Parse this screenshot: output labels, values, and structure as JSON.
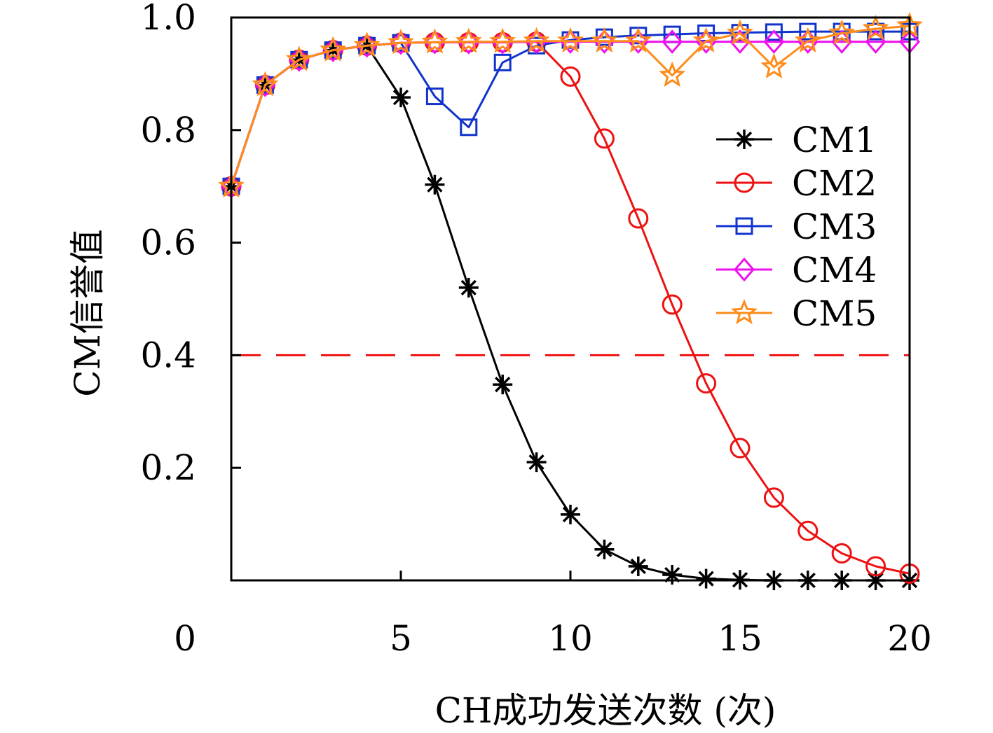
{
  "chart_data": {
    "type": "line",
    "title": "",
    "xlabel": "CH成功发送次数 (次)",
    "ylabel": "CM信誉值",
    "xlim": [
      0,
      20
    ],
    "ylim": [
      0,
      1.0
    ],
    "x_ticks": [
      0,
      5,
      10,
      15,
      20
    ],
    "x_tick_labels": [
      "0",
      "5",
      "10",
      "15",
      "20"
    ],
    "y_ticks": [
      0.2,
      0.4,
      0.6,
      0.8,
      1.0
    ],
    "y_tick_labels": [
      "0.2",
      "0.4",
      "0.6",
      "0.8",
      "1.0"
    ],
    "legend_position": "right",
    "x": [
      0,
      1,
      2,
      3,
      4,
      5,
      6,
      7,
      8,
      9,
      10,
      11,
      12,
      13,
      14,
      15,
      16,
      17,
      18,
      19,
      20
    ],
    "threshold": {
      "value": 0.4,
      "color": "#ee1111",
      "style": "dashed"
    },
    "series": [
      {
        "name": "CM1",
        "color": "#000000",
        "marker": "asterisk",
        "values": [
          0.7,
          0.88,
          0.925,
          0.942,
          0.95,
          0.858,
          0.703,
          0.52,
          0.348,
          0.21,
          0.117,
          0.055,
          0.025,
          0.01,
          0.003,
          0.001,
          0.0,
          0.0,
          0.0,
          0.0,
          0.0
        ]
      },
      {
        "name": "CM2",
        "color": "#ee1111",
        "marker": "circle",
        "values": [
          0.7,
          0.88,
          0.925,
          0.942,
          0.95,
          0.955,
          0.956,
          0.956,
          0.956,
          0.957,
          0.895,
          0.785,
          0.643,
          0.49,
          0.35,
          0.235,
          0.147,
          0.088,
          0.048,
          0.025,
          0.012
        ]
      },
      {
        "name": "CM3",
        "color": "#1133cc",
        "marker": "square",
        "values": [
          0.7,
          0.88,
          0.925,
          0.942,
          0.95,
          0.955,
          0.86,
          0.805,
          0.92,
          0.95,
          0.96,
          0.965,
          0.968,
          0.97,
          0.972,
          0.973,
          0.974,
          0.975,
          0.975,
          0.975,
          0.975
        ]
      },
      {
        "name": "CM4",
        "color": "#ee11ee",
        "marker": "diamond",
        "values": [
          0.7,
          0.88,
          0.925,
          0.942,
          0.95,
          0.955,
          0.956,
          0.956,
          0.956,
          0.957,
          0.957,
          0.957,
          0.957,
          0.957,
          0.957,
          0.957,
          0.957,
          0.957,
          0.957,
          0.957,
          0.957
        ]
      },
      {
        "name": "CM5",
        "color": "#ff8c1a",
        "marker": "star",
        "values": [
          0.7,
          0.88,
          0.925,
          0.942,
          0.95,
          0.955,
          0.956,
          0.957,
          0.957,
          0.958,
          0.958,
          0.958,
          0.958,
          0.897,
          0.958,
          0.972,
          0.912,
          0.958,
          0.972,
          0.98,
          0.985
        ]
      }
    ]
  }
}
